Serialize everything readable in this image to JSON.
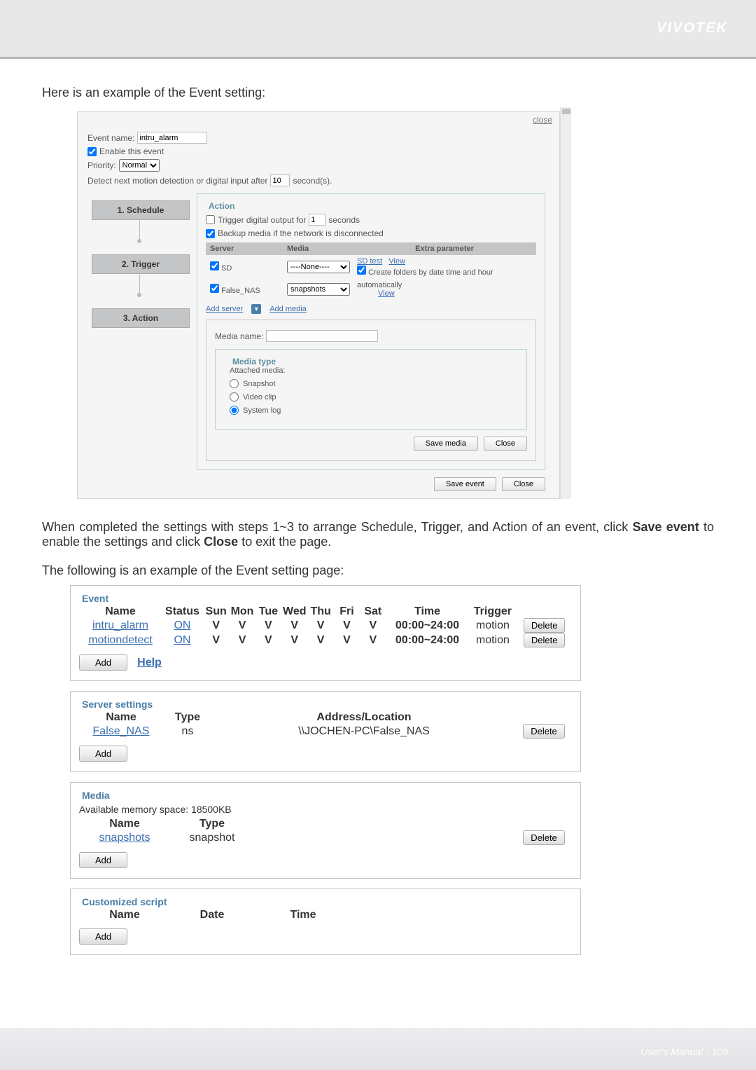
{
  "brand": "VIVOTEK",
  "intro1": "Here is an example of the Event setting:",
  "intro2_a": "When completed the settings with steps 1~3 to arrange Schedule, Trigger, and Action of an event, click ",
  "intro2_b": "Save event",
  "intro2_c": " to enable the settings and click ",
  "intro2_d": "Close",
  "intro2_e": " to exit the page.",
  "intro3": "The following is an example of the Event setting page:",
  "dialog": {
    "close": "close",
    "event_name_label": "Event name:",
    "event_name_value": "intru_alarm",
    "enable_label": "Enable this event",
    "priority_label": "Priority:",
    "priority_value": "Normal",
    "detect_label_a": "Detect next motion detection or digital input after",
    "detect_value": "10",
    "detect_label_b": "second(s).",
    "steps": [
      "1. Schedule",
      "2. Trigger",
      "3. Action"
    ],
    "action_legend": "Action",
    "trigger_do_label_a": "Trigger digital output for",
    "trigger_do_value": "1",
    "trigger_do_label_b": "seconds",
    "backup_label": "Backup media if the network is disconnected",
    "tbl_headers": {
      "server": "Server",
      "media": "Media",
      "extra": "Extra parameter"
    },
    "rows": [
      {
        "chk": true,
        "server": "SD",
        "media": "----None----",
        "extra_link1": "SD test",
        "extra_link2": "View",
        "extra_chk_label": "Create folders by date time and hour"
      },
      {
        "chk": true,
        "server": "False_NAS",
        "media": "snapshots",
        "auto_label": "automatically",
        "view": "View"
      }
    ],
    "add_server": "Add server",
    "add_media": "Add media",
    "media_name_label": "Media name:",
    "media_type_legend": "Media type",
    "attached_label": "Attached media:",
    "radios": [
      "Snapshot",
      "Video clip",
      "System log"
    ],
    "save_media": "Save media",
    "close_btn": "Close",
    "save_event": "Save event"
  },
  "es": {
    "event_legend": "Event",
    "headers": {
      "name": "Name",
      "status": "Status",
      "sun": "Sun",
      "mon": "Mon",
      "tue": "Tue",
      "wed": "Wed",
      "thu": "Thu",
      "fri": "Fri",
      "sat": "Sat",
      "time": "Time",
      "trigger": "Trigger"
    },
    "events": [
      {
        "name": "intru_alarm",
        "status": "ON",
        "days": [
          "V",
          "V",
          "V",
          "V",
          "V",
          "V",
          "V"
        ],
        "time": "00:00~24:00",
        "trigger": "motion"
      },
      {
        "name": "motiondetect",
        "status": "ON",
        "days": [
          "V",
          "V",
          "V",
          "V",
          "V",
          "V",
          "V"
        ],
        "time": "00:00~24:00",
        "trigger": "motion"
      }
    ],
    "add": "Add",
    "help": "Help",
    "delete": "Delete",
    "server_legend": "Server settings",
    "server_headers": {
      "name": "Name",
      "type": "Type",
      "addr": "Address/Location"
    },
    "servers": [
      {
        "name": "False_NAS",
        "type": "ns",
        "addr": "\\\\JOCHEN-PC\\False_NAS"
      }
    ],
    "media_legend": "Media",
    "mem_label": "Available memory space: 18500KB",
    "media_headers": {
      "name": "Name",
      "type": "Type"
    },
    "media": [
      {
        "name": "snapshots",
        "type": "snapshot"
      }
    ],
    "script_legend": "Customized script",
    "script_headers": {
      "name": "Name",
      "date": "Date",
      "time": "Time"
    }
  },
  "footer": {
    "text_a": "User's Manual - ",
    "page": "109"
  }
}
